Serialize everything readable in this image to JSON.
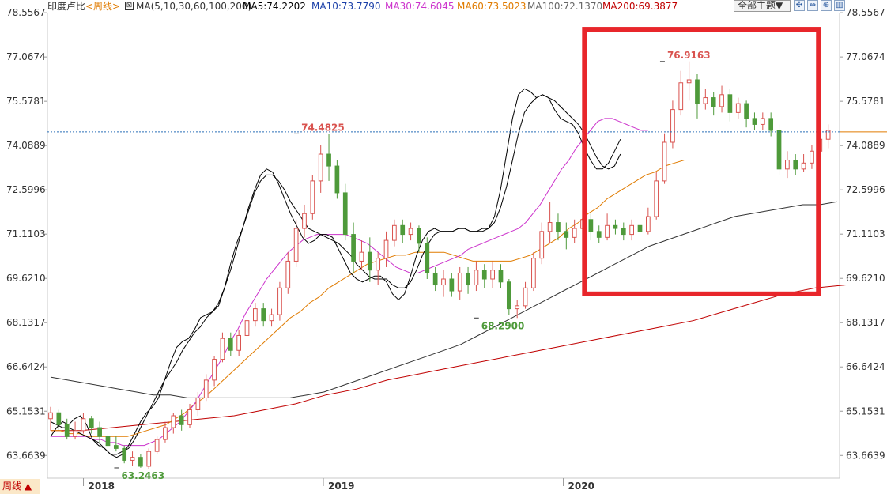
{
  "header": {
    "instrument": "印度卢比",
    "period_tag": "<周线>",
    "ma_list": "MA(5,10,30,60,100,200)",
    "ma5": "MA5:74.2202",
    "ma10": "MA10:73.7790",
    "ma30": "MA30:74.6045",
    "ma60": "MA60:73.5023",
    "ma100": "MA100:72.1370",
    "ma200": "MA200:69.3877",
    "theme_button": "全部主题▼",
    "tools": [
      "✣",
      "⇔",
      "⊕",
      "▥"
    ]
  },
  "footer": {
    "period_button": "周线 ▲"
  },
  "colors": {
    "up": "#d9534f",
    "down": "#4e9a3a",
    "ma5": "#000000",
    "ma10": "#000000",
    "ma30": "#cc33cc",
    "ma60": "#e07b00",
    "ma100": "#333333",
    "ma200": "#c00000",
    "crosshair": "#2a6fb8",
    "highlight": "#e8262b"
  },
  "chart_data": {
    "type": "candlestick",
    "yticks": [
      "78.5567",
      "77.0674",
      "75.5781",
      "74.0889",
      "72.5996",
      "71.1103",
      "69.6210",
      "68.1317",
      "66.6424",
      "65.1531",
      "63.6639"
    ],
    "ylim": [
      62.9,
      78.56
    ],
    "xlabels": [
      "2018",
      "2019",
      "2020"
    ],
    "x_range": [
      0,
      131
    ],
    "xlabel_positions": [
      6,
      46,
      86
    ],
    "annotations": [
      {
        "label": "76.9163",
        "value": 76.9163,
        "week": 102
      },
      {
        "label": "74.4825",
        "value": 74.4825,
        "week": 41
      },
      {
        "label": "68.2900",
        "value": 68.29,
        "week": 71
      },
      {
        "label": "63.2463",
        "value": 63.2463,
        "week": 11
      }
    ],
    "current_price": 74.55,
    "highlight_weeks": [
      89,
      128
    ],
    "highlight_values": [
      78.0,
      69.1
    ],
    "ma_values": {
      "ma5": [
        64.3,
        64.6,
        64.8,
        64.7,
        64.9,
        65.0,
        64.7,
        64.2,
        64.0,
        63.9,
        63.7,
        63.6,
        63.7,
        64.0,
        64.4,
        64.8,
        65.1,
        65.3,
        65.6,
        66.2,
        66.8,
        67.3,
        67.5,
        67.6,
        67.9,
        68.3,
        68.4,
        68.5,
        68.7,
        69.3,
        70.1,
        70.8,
        71.3,
        72.0,
        72.6,
        73.1,
        73.3,
        73.2,
        72.8,
        72.3,
        71.8,
        71.4,
        71.0,
        70.8,
        70.9,
        71.1,
        71.1,
        71.0,
        70.6,
        70.2,
        69.8,
        69.6,
        69.5,
        69.6,
        69.7,
        69.7,
        69.5,
        69.1,
        68.9,
        69.1,
        69.7,
        70.4,
        70.9,
        71.2,
        71.3,
        71.2,
        71.2,
        71.2,
        71.3,
        71.3,
        71.2,
        71.2,
        71.3,
        71.3,
        71.7,
        72.6,
        73.8,
        75.0,
        75.8,
        76.0,
        75.9,
        75.7,
        75.8,
        75.7,
        75.3,
        75.0,
        74.9,
        74.8,
        74.5,
        74.0,
        73.6,
        73.3,
        73.3,
        73.5,
        73.9,
        74.3
      ],
      "ma10": [
        64.8,
        64.7,
        64.6,
        64.6,
        64.5,
        64.4,
        64.3,
        64.2,
        64.1,
        63.9,
        63.7,
        63.7,
        63.8,
        63.9,
        64.2,
        64.6,
        65.0,
        65.4,
        65.8,
        66.2,
        66.5,
        66.8,
        67.2,
        67.5,
        67.8,
        68.0,
        68.3,
        68.5,
        68.8,
        69.3,
        69.9,
        70.6,
        71.3,
        71.9,
        72.5,
        72.9,
        73.1,
        73.1,
        72.9,
        72.6,
        72.2,
        71.9,
        71.6,
        71.3,
        71.2,
        71.1,
        71.0,
        70.9,
        70.8,
        70.6,
        70.4,
        70.1,
        69.9,
        69.7,
        69.6,
        69.6,
        69.6,
        69.4,
        69.3,
        69.3,
        69.5,
        69.9,
        70.4,
        70.8,
        71.1,
        71.2,
        71.2,
        71.2,
        71.3,
        71.3,
        71.2,
        71.2,
        71.2,
        71.3,
        71.5,
        72.0,
        72.7,
        73.6,
        74.5,
        75.2,
        75.5,
        75.7,
        75.8,
        75.7,
        75.6,
        75.4,
        75.2,
        75.0,
        74.8,
        74.5,
        74.1,
        73.7,
        73.4,
        73.3,
        73.4,
        73.8
      ],
      "ma30": [
        64.3,
        64.3,
        64.3,
        64.3,
        64.3,
        64.3,
        64.2,
        64.2,
        64.1,
        64.1,
        64.0,
        64.0,
        64.0,
        64.0,
        64.1,
        64.2,
        64.4,
        64.6,
        64.8,
        65.1,
        65.4,
        65.8,
        66.2,
        66.6,
        67.0,
        67.5,
        67.9,
        68.4,
        68.8,
        69.2,
        69.6,
        69.9,
        70.2,
        70.5,
        70.7,
        70.9,
        71.0,
        71.1,
        71.1,
        71.1,
        71.1,
        71.1,
        71.0,
        70.9,
        70.8,
        70.6,
        70.4,
        70.2,
        70.0,
        69.9,
        69.8,
        69.8,
        69.9,
        70.0,
        70.1,
        70.2,
        70.3,
        70.4,
        70.6,
        70.7,
        70.8,
        70.9,
        71.0,
        71.1,
        71.2,
        71.3,
        71.5,
        71.8,
        72.1,
        72.5,
        72.9,
        73.3,
        73.6,
        74.0,
        74.3,
        74.6,
        74.9,
        75.0,
        75.0,
        74.9,
        74.8,
        74.7,
        74.6,
        74.6
      ],
      "ma60": [
        64.5,
        64.5,
        64.4,
        64.4,
        64.3,
        64.3,
        64.3,
        64.3,
        64.3,
        64.4,
        64.5,
        64.6,
        64.7,
        64.9,
        65.1,
        65.4,
        65.6,
        65.9,
        66.2,
        66.5,
        66.8,
        67.1,
        67.4,
        67.7,
        68.0,
        68.3,
        68.5,
        68.8,
        69.0,
        69.3,
        69.5,
        69.7,
        69.9,
        70.1,
        70.2,
        70.3,
        70.4,
        70.4,
        70.5,
        70.5,
        70.5,
        70.5,
        70.4,
        70.3,
        70.2,
        70.2,
        70.2,
        70.2,
        70.2,
        70.3,
        70.4,
        70.6,
        70.8,
        71.0,
        71.3,
        71.5,
        71.8,
        72.0,
        72.3,
        72.5,
        72.7,
        72.9,
        73.1,
        73.2,
        73.4,
        73.5,
        73.6
      ],
      "ma100": [
        66.3,
        66.2,
        66.1,
        66.0,
        65.9,
        65.8,
        65.7,
        65.7,
        65.6,
        65.6,
        65.6,
        65.6,
        65.6,
        65.6,
        65.6,
        65.7,
        65.8,
        66.0,
        66.2,
        66.4,
        66.6,
        66.8,
        67.0,
        67.2,
        67.4,
        67.7,
        68.0,
        68.3,
        68.6,
        68.9,
        69.2,
        69.5,
        69.8,
        70.1,
        70.4,
        70.7,
        70.9,
        71.1,
        71.3,
        71.5,
        71.7,
        71.8,
        71.9,
        72.0,
        72.1,
        72.1,
        72.2
      ],
      "ma200": [
        64.5,
        64.5,
        64.6,
        64.7,
        64.8,
        64.9,
        65.0,
        65.2,
        65.4,
        65.7,
        65.9,
        66.2,
        66.4,
        66.6,
        66.8,
        67.0,
        67.2,
        67.4,
        67.6,
        67.8,
        68.0,
        68.2,
        68.5,
        68.8,
        69.1,
        69.3,
        69.4
      ]
    },
    "ma_start_weeks": {
      "ma5": 0,
      "ma10": 0,
      "ma30": 0,
      "ma60": 0,
      "ma100": 0,
      "ma200": 0
    },
    "ma_step_weeks": {
      "ma5": 1,
      "ma10": 1,
      "ma30": 1.2,
      "ma60": 1.6,
      "ma100": 2.85,
      "ma200": 5.1
    },
    "candles": [
      [
        64.9,
        65.1,
        65.3,
        64.5
      ],
      [
        65.1,
        64.7,
        65.2,
        64.5
      ],
      [
        64.7,
        64.3,
        64.9,
        64.2
      ],
      [
        64.3,
        64.5,
        64.8,
        64.2
      ],
      [
        64.5,
        64.9,
        65.1,
        64.4
      ],
      [
        64.9,
        64.6,
        65.0,
        64.4
      ],
      [
        64.6,
        64.3,
        64.8,
        64.1
      ],
      [
        64.3,
        64.0,
        64.4,
        63.9
      ],
      [
        64.0,
        63.9,
        64.3,
        63.8
      ],
      [
        63.9,
        63.5,
        64.0,
        63.4
      ],
      [
        63.5,
        63.6,
        63.8,
        63.3
      ],
      [
        63.6,
        63.3,
        63.7,
        63.25
      ],
      [
        63.3,
        63.8,
        63.9,
        63.2
      ],
      [
        63.8,
        64.2,
        64.3,
        63.7
      ],
      [
        64.2,
        64.6,
        64.8,
        64.1
      ],
      [
        64.6,
        65.0,
        65.1,
        64.4
      ],
      [
        65.0,
        64.7,
        65.2,
        64.5
      ],
      [
        64.7,
        65.2,
        65.4,
        64.6
      ],
      [
        65.2,
        65.6,
        65.8,
        65.0
      ],
      [
        65.6,
        66.2,
        66.4,
        65.5
      ],
      [
        66.2,
        66.9,
        67.0,
        66.0
      ],
      [
        66.9,
        67.6,
        67.8,
        66.8
      ],
      [
        67.6,
        67.2,
        67.8,
        67.0
      ],
      [
        67.2,
        67.7,
        67.9,
        67.0
      ],
      [
        67.7,
        68.2,
        68.4,
        67.5
      ],
      [
        68.2,
        68.6,
        68.8,
        68.0
      ],
      [
        68.6,
        68.2,
        68.8,
        68.0
      ],
      [
        68.2,
        68.4,
        68.6,
        68.0
      ],
      [
        68.4,
        69.3,
        69.5,
        68.2
      ],
      [
        69.3,
        70.2,
        70.5,
        69.1
      ],
      [
        70.2,
        71.3,
        71.6,
        70.0
      ],
      [
        71.3,
        71.8,
        72.1,
        71.0
      ],
      [
        71.8,
        72.9,
        73.1,
        71.6
      ],
      [
        72.9,
        73.8,
        74.1,
        72.5
      ],
      [
        73.8,
        73.4,
        74.48,
        72.9
      ],
      [
        73.4,
        72.5,
        73.6,
        72.3
      ],
      [
        72.5,
        71.1,
        72.8,
        70.9
      ],
      [
        71.1,
        70.2,
        71.5,
        69.8
      ],
      [
        70.2,
        70.5,
        70.9,
        69.9
      ],
      [
        70.5,
        69.9,
        71.0,
        69.5
      ],
      [
        69.9,
        70.3,
        70.5,
        69.4
      ],
      [
        70.3,
        70.9,
        71.2,
        70.0
      ],
      [
        70.9,
        71.4,
        71.6,
        70.7
      ],
      [
        71.4,
        71.1,
        71.6,
        70.8
      ],
      [
        71.1,
        71.3,
        71.5,
        70.9
      ],
      [
        71.3,
        70.8,
        71.4,
        70.5
      ],
      [
        70.8,
        69.8,
        71.0,
        69.6
      ],
      [
        69.8,
        69.4,
        70.0,
        69.2
      ],
      [
        69.4,
        69.6,
        69.9,
        69.0
      ],
      [
        69.6,
        69.2,
        69.8,
        69.0
      ],
      [
        69.2,
        69.8,
        70.0,
        68.9
      ],
      [
        69.8,
        69.4,
        70.0,
        69.1
      ],
      [
        69.4,
        69.9,
        70.2,
        69.2
      ],
      [
        69.9,
        69.6,
        70.1,
        69.3
      ],
      [
        69.6,
        69.9,
        70.2,
        69.3
      ],
      [
        69.9,
        69.5,
        70.1,
        69.3
      ],
      [
        69.5,
        68.6,
        69.6,
        68.4
      ],
      [
        68.6,
        68.7,
        68.9,
        68.29
      ],
      [
        68.7,
        69.3,
        69.5,
        68.6
      ],
      [
        69.3,
        70.3,
        70.5,
        69.2
      ],
      [
        70.3,
        71.2,
        71.5,
        70.1
      ],
      [
        71.2,
        71.5,
        72.2,
        70.8
      ],
      [
        71.5,
        71.2,
        71.8,
        70.9
      ],
      [
        71.2,
        71.0,
        71.5,
        70.6
      ],
      [
        71.0,
        71.3,
        71.6,
        70.8
      ],
      [
        71.3,
        71.6,
        71.9,
        71.0
      ],
      [
        71.6,
        71.2,
        71.8,
        70.9
      ],
      [
        71.2,
        71.0,
        71.4,
        70.8
      ],
      [
        71.0,
        71.4,
        71.8,
        70.9
      ],
      [
        71.4,
        71.3,
        71.6,
        71.1
      ],
      [
        71.3,
        71.1,
        71.5,
        70.9
      ],
      [
        71.1,
        71.4,
        71.6,
        70.9
      ],
      [
        71.4,
        71.2,
        71.6,
        71.0
      ],
      [
        71.2,
        71.7,
        72.0,
        71.1
      ],
      [
        71.7,
        72.9,
        73.2,
        71.6
      ],
      [
        72.9,
        74.2,
        74.5,
        72.8
      ],
      [
        74.2,
        75.3,
        75.6,
        74.0
      ],
      [
        75.3,
        76.2,
        76.6,
        75.1
      ],
      [
        76.2,
        76.3,
        76.92,
        75.6
      ],
      [
        76.3,
        75.5,
        76.5,
        75.0
      ],
      [
        75.5,
        75.7,
        76.0,
        75.3
      ],
      [
        75.7,
        75.4,
        75.9,
        75.1
      ],
      [
        75.4,
        75.8,
        76.1,
        75.2
      ],
      [
        75.8,
        75.2,
        76.0,
        74.9
      ],
      [
        75.2,
        75.5,
        75.7,
        75.0
      ],
      [
        75.5,
        75.0,
        75.6,
        74.7
      ],
      [
        75.0,
        74.8,
        75.2,
        74.6
      ],
      [
        74.8,
        75.0,
        75.2,
        74.6
      ],
      [
        75.0,
        74.6,
        75.2,
        74.4
      ],
      [
        74.6,
        73.3,
        74.8,
        73.1
      ],
      [
        73.3,
        73.6,
        73.9,
        73.0
      ],
      [
        73.6,
        73.3,
        73.8,
        73.1
      ],
      [
        73.3,
        73.5,
        73.8,
        73.2
      ],
      [
        73.5,
        73.9,
        74.1,
        73.3
      ],
      [
        73.9,
        74.3,
        74.5,
        73.7
      ],
      [
        74.3,
        74.6,
        74.8,
        74.0
      ]
    ]
  }
}
